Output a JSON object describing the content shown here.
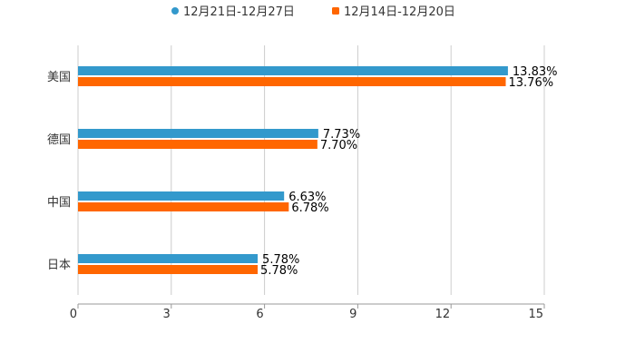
{
  "chart_data": {
    "type": "bar",
    "orientation": "horizontal",
    "categories": [
      "美国",
      "德国",
      "中国",
      "日本"
    ],
    "series": [
      {
        "name": "12月21日-12月27日",
        "color": "#3399cc",
        "values": [
          13.83,
          7.73,
          6.63,
          5.78
        ],
        "labels": [
          "13.83%",
          "7.73%",
          "6.63%",
          "5.78%"
        ]
      },
      {
        "name": "12月14日-12月20日",
        "color": "#ff6600",
        "values": [
          13.76,
          7.7,
          6.78,
          5.78
        ],
        "labels": [
          "13.76%",
          "7.70%",
          "6.78%",
          "5.78%"
        ]
      }
    ],
    "xticks": [
      "0",
      "3",
      "6",
      "9",
      "12",
      "15"
    ],
    "xlim": [
      0,
      15
    ],
    "grid": true,
    "legend": "top-center",
    "title": "",
    "xlabel": "",
    "ylabel": ""
  }
}
